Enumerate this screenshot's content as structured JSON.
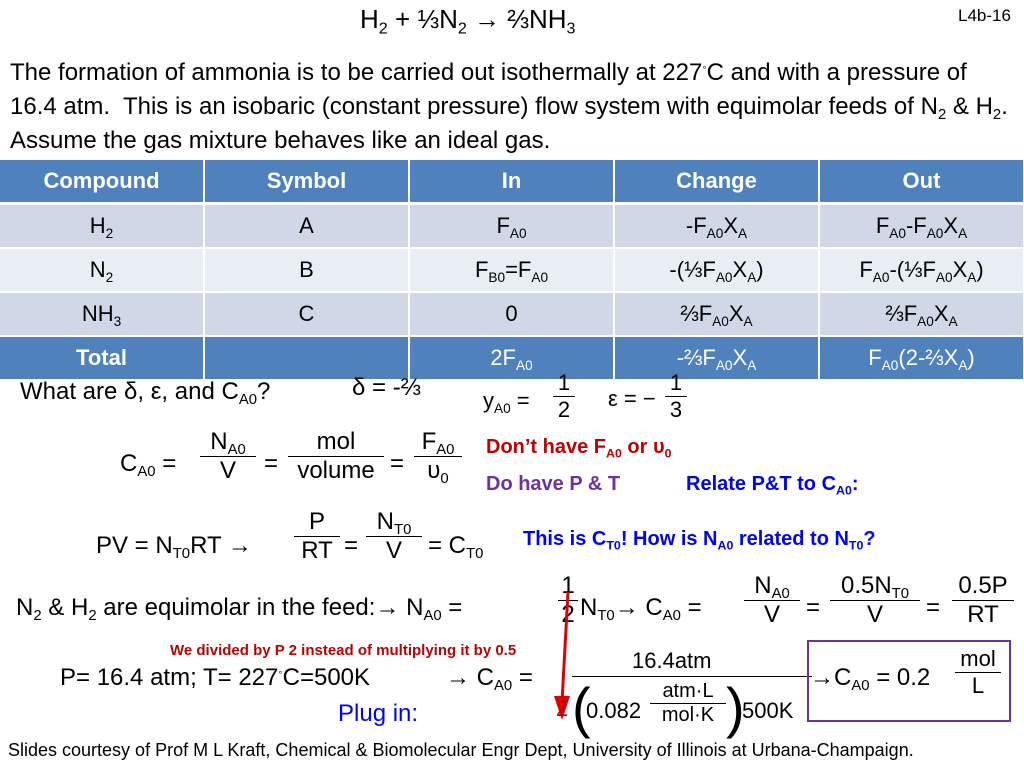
{
  "slide": {
    "equation_title": "H₂ + ⅓N₂ → ⅔NH₃",
    "slide_id": "L4b-16",
    "intro_text": "The formation of ammonia is to be carried out isothermally at 227°C and with a pressure of 16.4 atm.  This is an isobaric (constant pressure) flow system with equimolar feeds of N₂ & H₂. Assume the gas mixture behaves like an ideal gas."
  },
  "table": {
    "headers": [
      "Compound",
      "Symbol",
      "In",
      "Change",
      "Out"
    ],
    "rows": [
      {
        "compound": "H₂",
        "symbol": "A",
        "in": "F_A0",
        "change": "-F_A0 X_A",
        "out": "F_A0 - F_A0 X_A"
      },
      {
        "compound": "N₂",
        "symbol": "B",
        "in": "F_B0 = F_A0",
        "change": "-(⅓F_A0 X_A)",
        "out": "F_A0 - (⅓F_A0 X_A)"
      },
      {
        "compound": "NH₃",
        "symbol": "C",
        "in": "0",
        "change": "⅔F_A0 X_A",
        "out": "⅔F_A0 X_A"
      }
    ],
    "total": {
      "label": "Total",
      "in": "2F_A0",
      "change": "-⅔F_A0 X_A",
      "out": "F_A0(2-⅔X_A)"
    }
  },
  "questions": {
    "what_are": "What are δ, ε, and C_A0?",
    "delta": "δ = -⅔",
    "yA0_label": "y_A0 =",
    "yA0_num": "1",
    "yA0_den": "2",
    "eps_label": "ε = −",
    "eps_num": "1",
    "eps_den": "3"
  },
  "concentration": {
    "lhs": "C_A0 =",
    "n_num": "N_A0",
    "n_den": "V",
    "unit_num": "mol",
    "unit_den": "volume",
    "f_num": "F_A0",
    "f_den": "υ0",
    "dont_have": "Don't have F_A0 or υ0",
    "do_have": "Do have P & T",
    "relate": "Relate P&T to C_A0:"
  },
  "ideal_gas": {
    "pv": "PV = N_T0 RT →",
    "p_num": "P",
    "p_den": "RT",
    "nt_num": "N_T0",
    "nt_den": "V",
    "ct0": "= C_T0",
    "note": "This is C_T0! How is N_A0 related to N_T0?"
  },
  "equimolar": {
    "statement": "N₂ & H₂ are equimolar in the feed:",
    "half_num": "1",
    "half_den": "2",
    "n_a0": "→ N_A0 =",
    "nt0": "N_T0",
    "ca0": "→ C_A0 =",
    "na0_num": "N_A0",
    "na0_den": "V",
    "half_nt_num": "0.5N_T0",
    "half_nt_den": "V",
    "half_p_num": "0.5P",
    "half_p_den": "RT"
  },
  "plug_in": {
    "note": "We divided by P 2 instead of multiplying it by 0.5",
    "conditions": "P= 16.4 atm; T= 227°C=500K",
    "arrow_ca0": "→ C_A0 =",
    "numerator": "16.4atm",
    "factor_two": "2",
    "r_value": "0.082",
    "r_unit_num": "atm·L",
    "r_unit_den": "mol·K",
    "temperature": "500K",
    "result_lhs": "→ C_A0 = 0.2",
    "result_unit_num": "mol",
    "result_unit_den": "L",
    "label": "Plug in:"
  },
  "footer": "Slides courtesy of Prof M L Kraft, Chemical & Biomolecular Engr Dept, University of Illinois at Urbana-Champaign.",
  "colors": {
    "header_blue": "#4f81bd",
    "row_light": "#d0d8e8",
    "row_lighter": "#e9edf4",
    "red": "#c00000",
    "purple": "#7030a0",
    "blue": "#0000ff"
  }
}
